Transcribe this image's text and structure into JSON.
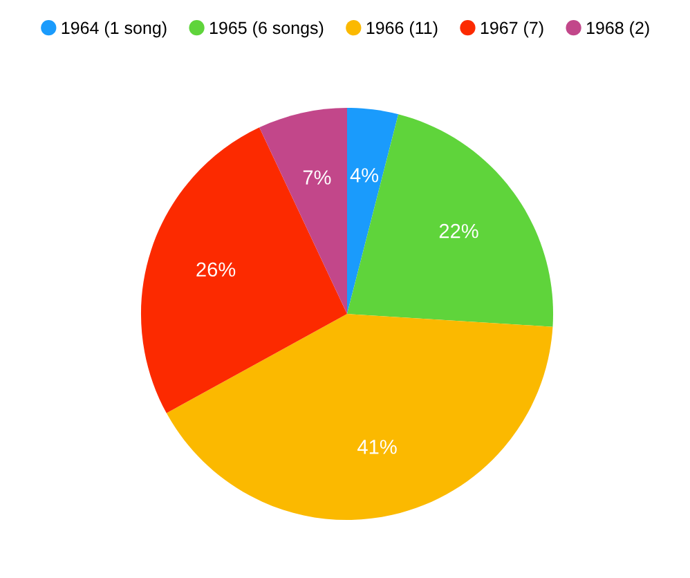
{
  "chart_data": {
    "type": "pie",
    "categories": [
      "1964 (1 song)",
      "1965 (6 songs)",
      "1966 (11)",
      "1967 (7)",
      "1968 (2)"
    ],
    "values": [
      4,
      22,
      41,
      26,
      7
    ],
    "colors": [
      "#1a9bfc",
      "#5fd43b",
      "#fbb900",
      "#fc2a00",
      "#c2478a"
    ],
    "value_labels": [
      "4%",
      "22%",
      "41%",
      "26%",
      "7%"
    ],
    "legend": "top"
  }
}
